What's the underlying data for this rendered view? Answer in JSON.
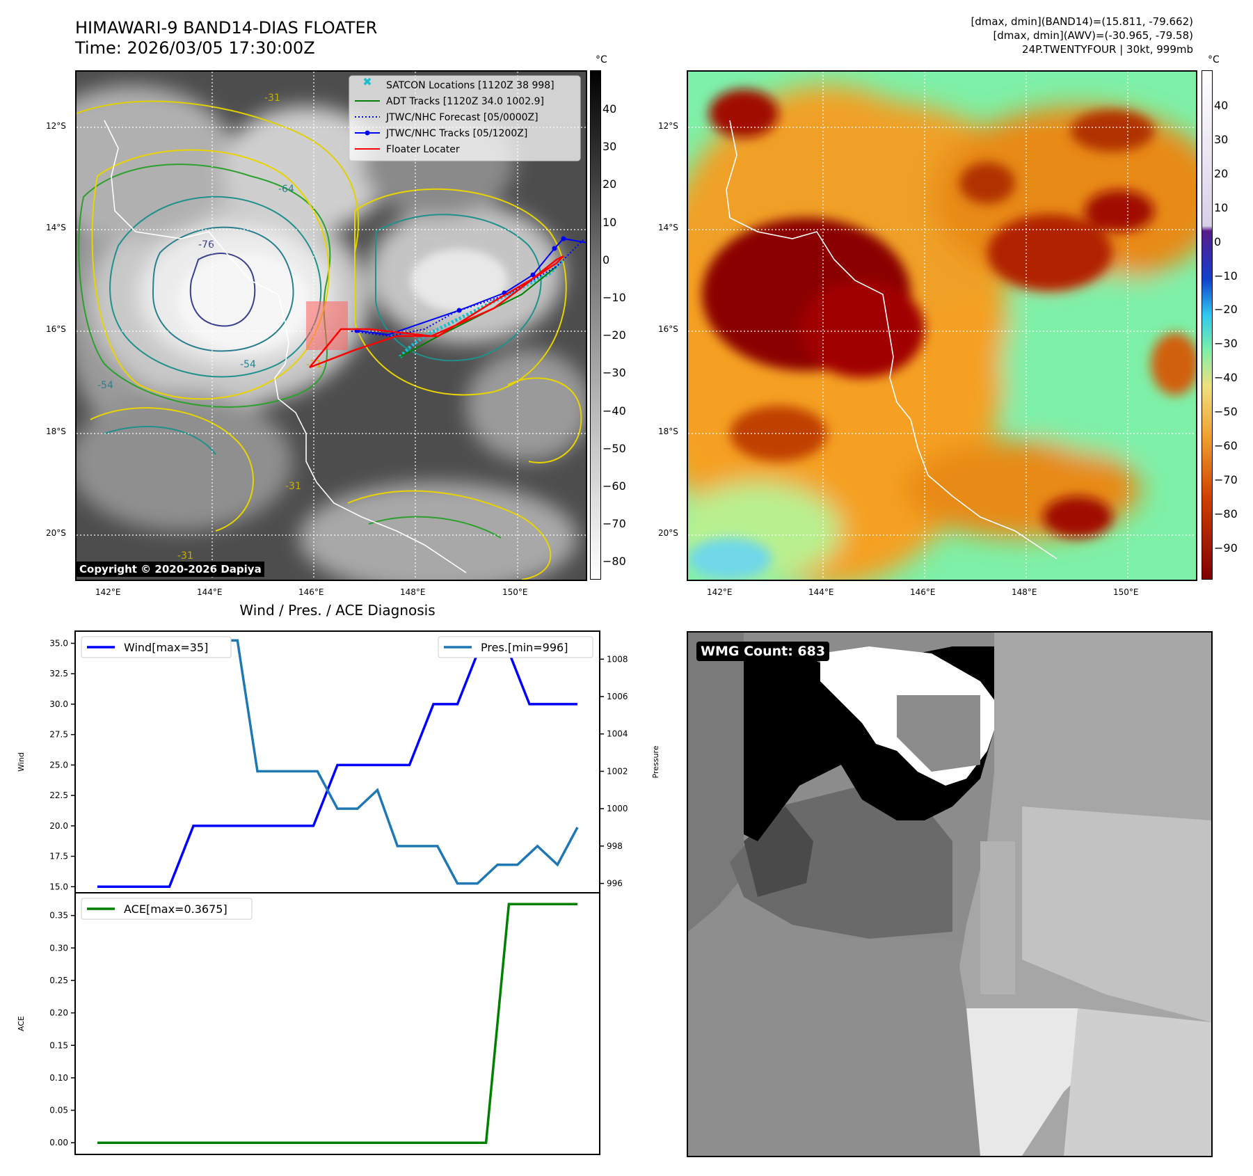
{
  "header": {
    "title_line1": "HIMAWARI-9 BAND14-DIAS FLOATER",
    "title_line2": "Time: 2026/03/05 17:30:00Z",
    "info_line1": "[dmax, dmin](BAND14)=(15.811, -79.662)",
    "info_line2": "[dmax, dmin](AWV)=(-30.965, -79.58)",
    "info_line3": "24P.TWENTYFOUR | 30kt, 999mb"
  },
  "map_axes": {
    "lon_ticks": [
      "142°E",
      "144°E",
      "146°E",
      "148°E",
      "150°E"
    ],
    "lat_ticks": [
      "12°S",
      "14°S",
      "16°S",
      "18°S",
      "20°S"
    ]
  },
  "ir_panel": {
    "legend": [
      {
        "label": "SATCON Locations [1120Z 38 998]",
        "color": "#17becf"
      },
      {
        "label": "ADT Tracks [1120Z 34.0 1002.9]",
        "color": "#008000"
      },
      {
        "label": "JTWC/NHC Forecast [05/0000Z]",
        "color": "#0000ff"
      },
      {
        "label": "JTWC/NHC Tracks [05/1200Z]",
        "color": "#0000ff"
      },
      {
        "label": "Floater Locater",
        "color": "#ff0000"
      }
    ],
    "contour_labels": [
      "-31",
      "-54",
      "-64",
      "-76"
    ],
    "copyright": "Copyright © 2020-2026 Dapiya",
    "colorbar_unit": "°C",
    "colorbar_ticks": [
      "40",
      "30",
      "20",
      "10",
      "0",
      "−10",
      "−20",
      "−30",
      "−40",
      "−50",
      "−60",
      "−70",
      "−80"
    ]
  },
  "awv_panel": {
    "colorbar_unit": "°C",
    "colorbar_ticks": [
      "40",
      "30",
      "20",
      "10",
      "0",
      "−10",
      "−20",
      "−30",
      "−40",
      "−50",
      "−60",
      "−70",
      "−80",
      "−90"
    ]
  },
  "wmg_panel": {
    "label": "WMG Count: 683"
  },
  "chart_data": [
    {
      "type": "line",
      "title": "Wind / Pres. / ACE Diagnosis",
      "ylabel": "Wind",
      "ylim": [
        14.5,
        36
      ],
      "y_ticks": [
        "15.0",
        "17.5",
        "20.0",
        "22.5",
        "25.0",
        "27.5",
        "30.0",
        "32.5",
        "35.0"
      ],
      "grid": false,
      "legend_position": "top-left",
      "series": [
        {
          "name": "Wind[max=35]",
          "color": "#0000ff",
          "values": [
            15,
            15,
            15,
            15,
            20,
            20,
            20,
            20,
            20,
            20,
            25,
            25,
            25,
            25,
            30,
            30,
            35,
            35,
            30,
            30,
            30
          ]
        }
      ]
    },
    {
      "type": "line",
      "ylabel": "Pressure",
      "ylim": [
        995.5,
        1009.5
      ],
      "y_ticks": [
        "996",
        "998",
        "1000",
        "1002",
        "1004",
        "1006",
        "1008"
      ],
      "grid": false,
      "legend_position": "top-right",
      "series": [
        {
          "name": "Pres.[min=996]",
          "color": "#1f77b4",
          "values": [
            1009,
            1009,
            1009,
            1009,
            1009,
            1009,
            1009,
            1009,
            1002,
            1002,
            1002,
            1002,
            1000,
            1000,
            1001,
            998,
            998,
            998,
            996,
            996,
            997,
            997,
            998,
            997,
            999
          ]
        }
      ]
    },
    {
      "type": "line",
      "ylabel": "ACE",
      "ylim": [
        -0.018,
        0.385
      ],
      "y_ticks": [
        "0.00",
        "0.05",
        "0.10",
        "0.15",
        "0.20",
        "0.25",
        "0.30",
        "0.35"
      ],
      "grid": false,
      "legend_position": "top-left",
      "series": [
        {
          "name": "ACE[max=0.3675]",
          "color": "#008000",
          "values": [
            0,
            0,
            0,
            0,
            0,
            0,
            0,
            0,
            0,
            0,
            0,
            0,
            0,
            0,
            0,
            0,
            0,
            0,
            0.3675,
            0.3675,
            0.3675,
            0.3675
          ]
        }
      ]
    }
  ]
}
